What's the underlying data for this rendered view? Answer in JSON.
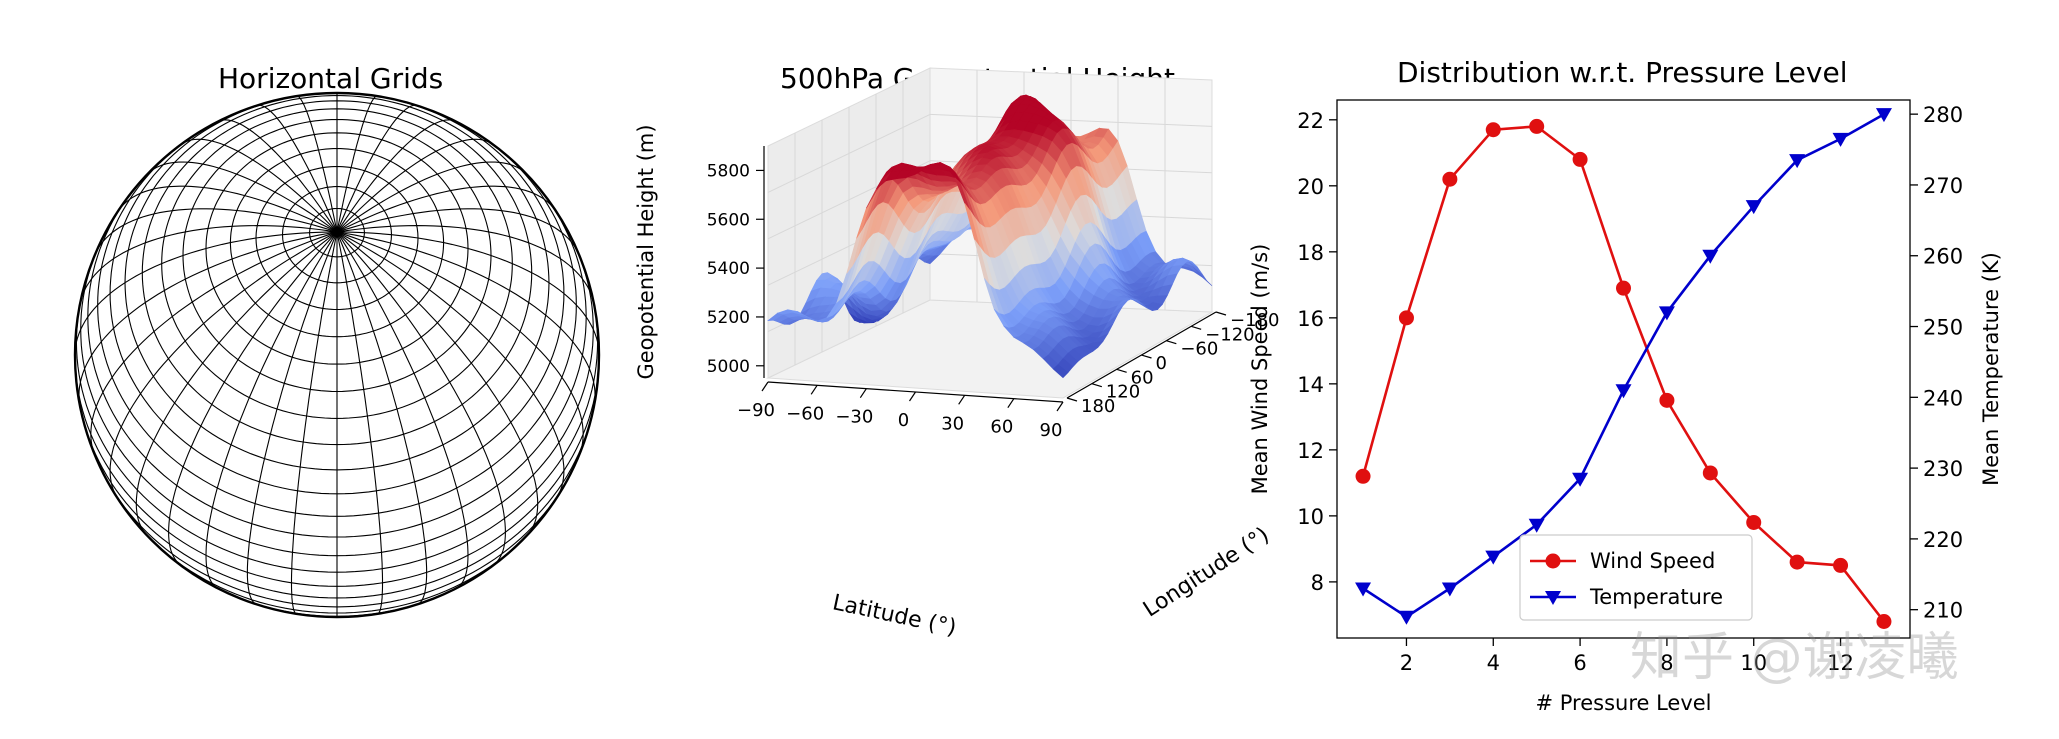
{
  "watermark": "知乎 @谢凌曦",
  "chart_data": [
    {
      "type": "other",
      "title": "Horizontal Grids",
      "grid": true
    },
    {
      "type": "surface",
      "title": "500hPa Geopotential Height",
      "zlabel": "Geopotential Height (m)",
      "xlabel": "Latitude ($^\\circ$)",
      "ylabel": "Longitude ($^\\circ$)",
      "xlabel_display": "Latitude (°)",
      "ylabel_display": "Longitude (°)",
      "zticks": [
        "5000",
        "5200",
        "5400",
        "5600",
        "5800"
      ],
      "xticks": [
        "−90",
        "−60",
        "−30",
        "0",
        "30",
        "60",
        "90"
      ],
      "yticks": [
        "−180",
        "−120",
        "−60",
        "0",
        "60",
        "120",
        "180"
      ],
      "colormap": "coolwarm",
      "zlim": [
        4950,
        5900
      ]
    },
    {
      "type": "line",
      "title": "Distribution w.r.t. Pressure Level",
      "xlabel": "# Pressure Level",
      "ylabel": "Mean Wind Speed (m/s)",
      "y2label": "Mean Temperature (K)",
      "xticks": [
        2,
        4,
        6,
        8,
        10,
        12
      ],
      "yticks": [
        8,
        10,
        12,
        14,
        16,
        18,
        20,
        22
      ],
      "y2ticks": [
        210,
        220,
        230,
        240,
        250,
        260,
        270,
        280
      ],
      "xlim": [
        0.4,
        13.6
      ],
      "ylim": [
        6.3,
        22.6
      ],
      "y2lim": [
        206,
        282
      ],
      "legend_position": "lower-center",
      "x": [
        1,
        2,
        3,
        4,
        5,
        6,
        7,
        8,
        9,
        10,
        11,
        12,
        13
      ],
      "series": [
        {
          "name": "Wind Speed",
          "axis": "left",
          "color": "#e01010",
          "marker": "circle",
          "values": [
            11.2,
            16.0,
            20.2,
            21.7,
            21.8,
            20.8,
            16.9,
            13.5,
            11.3,
            9.8,
            8.6,
            8.5,
            6.8
          ]
        },
        {
          "name": "Temperature",
          "axis": "right",
          "color": "#0000cc",
          "marker": "triangle-down",
          "values": [
            213,
            209,
            213,
            217.5,
            222,
            228.5,
            241,
            252,
            260,
            267,
            273.5,
            276.5,
            280
          ]
        }
      ]
    }
  ]
}
